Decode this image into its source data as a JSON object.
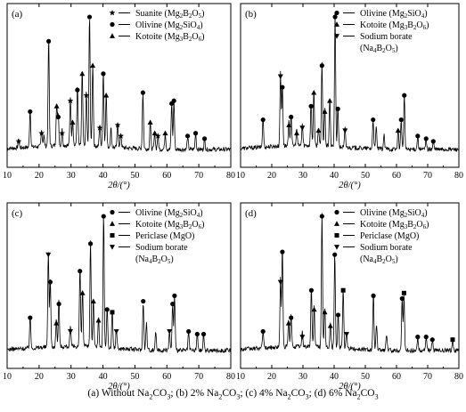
{
  "caption": {
    "a": "(a) Without Na",
    "b": "; (b) 2% Na",
    "c": "; (c) 4% Na",
    "d": "; (d) 6% Na",
    "co3": "CO",
    "sub2": "2",
    "sub3": "3"
  },
  "chart_data": [
    {
      "type": "line",
      "panel_label": "(a)",
      "xlabel": "2θ/(°)",
      "xlim": [
        10,
        80
      ],
      "x_ticks": [
        10,
        20,
        30,
        40,
        50,
        60,
        70,
        80
      ],
      "grid": false,
      "legend_position": "top-right",
      "legend": [
        {
          "marker": "star",
          "name": "Suanite (Mg",
          "sub1": "2",
          "mid": "B",
          "sub2": "2",
          "end": "O",
          "sub3": "5",
          "close": ")"
        },
        {
          "marker": "circle",
          "name": "Olivine (Mg",
          "sub1": "2",
          "mid": "SiO",
          "sub2": "4",
          "end": ")",
          "sub3": "",
          "close": ""
        },
        {
          "marker": "triangle",
          "name": "Kotoite (Mg",
          "sub1": "3",
          "mid": "B",
          "sub2": "2",
          "end": "O",
          "sub3": "6",
          "close": ")"
        }
      ],
      "peaks": [
        {
          "x": 13.6,
          "y": 6,
          "marker": "star"
        },
        {
          "x": 17.2,
          "y": 28,
          "marker": "circle"
        },
        {
          "x": 20.8,
          "y": 12,
          "marker": "star"
        },
        {
          "x": 21.5,
          "y": 8,
          "marker": null
        },
        {
          "x": 23.0,
          "y": 80,
          "marker": "circle"
        },
        {
          "x": 25.5,
          "y": 32,
          "marker": "triangle"
        },
        {
          "x": 26.0,
          "y": 24,
          "marker": "circle"
        },
        {
          "x": 27.2,
          "y": 12,
          "marker": "star"
        },
        {
          "x": 29.8,
          "y": 36,
          "marker": "star"
        },
        {
          "x": 30.5,
          "y": 20,
          "marker": "triangle"
        },
        {
          "x": 32.0,
          "y": 44,
          "marker": "circle"
        },
        {
          "x": 33.5,
          "y": 56,
          "marker": "triangle"
        },
        {
          "x": 34.8,
          "y": 40,
          "marker": "star"
        },
        {
          "x": 35.8,
          "y": 98,
          "marker": "circle"
        },
        {
          "x": 36.8,
          "y": 62,
          "marker": "triangle"
        },
        {
          "x": 39.0,
          "y": 16,
          "marker": "star"
        },
        {
          "x": 40.1,
          "y": 56,
          "marker": "circle"
        },
        {
          "x": 41.0,
          "y": 40,
          "marker": "triangle"
        },
        {
          "x": 42.5,
          "y": 14,
          "marker": null
        },
        {
          "x": 44.6,
          "y": 18,
          "marker": "star"
        },
        {
          "x": 45.6,
          "y": 10,
          "marker": "star"
        },
        {
          "x": 52.5,
          "y": 42,
          "marker": "circle"
        },
        {
          "x": 54.8,
          "y": 20,
          "marker": "triangle"
        },
        {
          "x": 56.2,
          "y": 12,
          "marker": "triangle"
        },
        {
          "x": 57.2,
          "y": 10,
          "marker": "star"
        },
        {
          "x": 59.5,
          "y": 12,
          "marker": "triangle"
        },
        {
          "x": 61.5,
          "y": 34,
          "marker": "circle"
        },
        {
          "x": 62.2,
          "y": 36,
          "marker": "circle"
        },
        {
          "x": 66.5,
          "y": 10,
          "marker": "circle"
        },
        {
          "x": 69.0,
          "y": 12,
          "marker": "circle"
        },
        {
          "x": 71.8,
          "y": 8,
          "marker": "circle"
        }
      ]
    },
    {
      "type": "line",
      "panel_label": "(b)",
      "xlabel": "2θ/(°)",
      "xlim": [
        10,
        80
      ],
      "x_ticks": [
        10,
        20,
        30,
        40,
        50,
        60,
        70,
        80
      ],
      "grid": false,
      "legend_position": "top-right",
      "legend": [
        {
          "marker": "circle",
          "name": "Olivine (Mg",
          "sub1": "2",
          "mid": "SiO",
          "sub2": "4",
          "end": ")",
          "sub3": "",
          "close": ""
        },
        {
          "marker": "triangle",
          "name": "Kotoite (Mg",
          "sub1": "3",
          "mid": "B",
          "sub2": "2",
          "end": "O",
          "sub3": "6",
          "close": ")"
        },
        {
          "marker": "inverted-triangle",
          "name": "Sodium borate",
          "sub1": "",
          "mid": "",
          "sub2": "",
          "end": "",
          "sub3": "",
          "close": ""
        },
        {
          "marker": null,
          "name": "(Na",
          "sub1": "4",
          "mid": "B",
          "sub2": "2",
          "end": "O",
          "sub3": "5",
          "close": ")"
        }
      ],
      "peaks": [
        {
          "x": 17.2,
          "y": 22,
          "marker": "circle"
        },
        {
          "x": 22.8,
          "y": 54,
          "marker": "inverted-triangle"
        },
        {
          "x": 23.4,
          "y": 46,
          "marker": "circle"
        },
        {
          "x": 25.5,
          "y": 18,
          "marker": "triangle"
        },
        {
          "x": 26.2,
          "y": 24,
          "marker": "circle"
        },
        {
          "x": 28.0,
          "y": 12,
          "marker": "triangle"
        },
        {
          "x": 29.8,
          "y": 16,
          "marker": "inverted-triangle"
        },
        {
          "x": 32.6,
          "y": 32,
          "marker": "circle"
        },
        {
          "x": 33.5,
          "y": 42,
          "marker": "triangle"
        },
        {
          "x": 35.0,
          "y": 14,
          "marker": "triangle"
        },
        {
          "x": 36.1,
          "y": 62,
          "marker": "circle"
        },
        {
          "x": 37.0,
          "y": 28,
          "marker": "triangle"
        },
        {
          "x": 38.6,
          "y": 36,
          "marker": "triangle"
        },
        {
          "x": 40.3,
          "y": 98,
          "marker": "circle"
        },
        {
          "x": 41.2,
          "y": 30,
          "marker": "circle"
        },
        {
          "x": 43.5,
          "y": 14,
          "marker": "inverted-triangle"
        },
        {
          "x": 52.5,
          "y": 22,
          "marker": "circle"
        },
        {
          "x": 53.5,
          "y": 16,
          "marker": null
        },
        {
          "x": 56.0,
          "y": 10,
          "marker": null
        },
        {
          "x": 60.5,
          "y": 14,
          "marker": "triangle"
        },
        {
          "x": 61.5,
          "y": 22,
          "marker": "circle"
        },
        {
          "x": 62.5,
          "y": 40,
          "marker": "circle"
        },
        {
          "x": 66.8,
          "y": 10,
          "marker": "circle"
        },
        {
          "x": 69.5,
          "y": 8,
          "marker": "circle"
        },
        {
          "x": 71.8,
          "y": 6,
          "marker": "circle"
        }
      ]
    },
    {
      "type": "line",
      "panel_label": "(c)",
      "xlabel": "2θ/(°)",
      "xlim": [
        10,
        80
      ],
      "x_ticks": [
        10,
        20,
        30,
        40,
        50,
        60,
        70,
        80
      ],
      "grid": false,
      "legend_position": "top-right",
      "legend": [
        {
          "marker": "circle",
          "name": "Olivine (Mg",
          "sub1": "2",
          "mid": "SiO",
          "sub2": "4",
          "end": ")",
          "sub3": "",
          "close": ""
        },
        {
          "marker": "triangle",
          "name": "Kotoite (Mg",
          "sub1": "3",
          "mid": "B",
          "sub2": "2",
          "end": "O",
          "sub3": "6",
          "close": ")"
        },
        {
          "marker": "square",
          "name": "Periclase (MgO)",
          "sub1": "",
          "mid": "",
          "sub2": "",
          "end": "",
          "sub3": "",
          "close": ""
        },
        {
          "marker": "inverted-triangle",
          "name": "Sodium borate",
          "sub1": "",
          "mid": "",
          "sub2": "",
          "end": "",
          "sub3": "",
          "close": ""
        },
        {
          "marker": null,
          "name": "(Na",
          "sub1": "4",
          "mid": "B",
          "sub2": "2",
          "end": "O",
          "sub3": "5",
          "close": ")"
        }
      ],
      "peaks": [
        {
          "x": 17.2,
          "y": 24,
          "marker": "circle"
        },
        {
          "x": 22.9,
          "y": 70,
          "marker": "inverted-triangle"
        },
        {
          "x": 23.5,
          "y": 50,
          "marker": "circle"
        },
        {
          "x": 25.4,
          "y": 20,
          "marker": "triangle"
        },
        {
          "x": 26.2,
          "y": 34,
          "marker": "circle"
        },
        {
          "x": 29.8,
          "y": 14,
          "marker": "inverted-triangle"
        },
        {
          "x": 32.8,
          "y": 58,
          "marker": "circle"
        },
        {
          "x": 33.6,
          "y": 42,
          "marker": "triangle"
        },
        {
          "x": 36.1,
          "y": 78,
          "marker": "circle"
        },
        {
          "x": 37.0,
          "y": 36,
          "marker": "triangle"
        },
        {
          "x": 38.6,
          "y": 22,
          "marker": "triangle"
        },
        {
          "x": 40.2,
          "y": 98,
          "marker": "circle"
        },
        {
          "x": 41.3,
          "y": 30,
          "marker": "circle"
        },
        {
          "x": 42.9,
          "y": 28,
          "marker": "square"
        },
        {
          "x": 44.2,
          "y": 14,
          "marker": "inverted-triangle"
        },
        {
          "x": 52.6,
          "y": 36,
          "marker": "circle"
        },
        {
          "x": 53.6,
          "y": 20,
          "marker": null
        },
        {
          "x": 56.5,
          "y": 14,
          "marker": null
        },
        {
          "x": 60.8,
          "y": 14,
          "marker": "inverted-triangle"
        },
        {
          "x": 61.8,
          "y": 34,
          "marker": "circle"
        },
        {
          "x": 62.4,
          "y": 40,
          "marker": "circle"
        },
        {
          "x": 66.8,
          "y": 14,
          "marker": "circle"
        },
        {
          "x": 69.5,
          "y": 12,
          "marker": "circle"
        },
        {
          "x": 71.5,
          "y": 12,
          "marker": "circle"
        }
      ]
    },
    {
      "type": "line",
      "panel_label": "(d)",
      "xlabel": "2θ/(°)",
      "xlim": [
        10,
        80
      ],
      "x_ticks": [
        10,
        20,
        30,
        40,
        50,
        60,
        70,
        80
      ],
      "grid": false,
      "legend_position": "top-right",
      "legend": [
        {
          "marker": "circle",
          "name": "Olivine (Mg",
          "sub1": "2",
          "mid": "SiO",
          "sub2": "4",
          "end": ")",
          "sub3": "",
          "close": ""
        },
        {
          "marker": "triangle",
          "name": "Kotoite (Mg",
          "sub1": "3",
          "mid": "B",
          "sub2": "2",
          "end": "O",
          "sub3": "6",
          "close": ")"
        },
        {
          "marker": "square",
          "name": "Periclase (MgO)",
          "sub1": "",
          "mid": "",
          "sub2": "",
          "end": "",
          "sub3": "",
          "close": ""
        },
        {
          "marker": "inverted-triangle",
          "name": "Sodium borate",
          "sub1": "",
          "mid": "",
          "sub2": "",
          "end": "",
          "sub3": "",
          "close": ""
        },
        {
          "marker": null,
          "name": "(Na",
          "sub1": "4",
          "mid": "B",
          "sub2": "2",
          "end": "O",
          "sub3": "5",
          "close": ")"
        }
      ],
      "peaks": [
        {
          "x": 17.2,
          "y": 14,
          "marker": "circle"
        },
        {
          "x": 22.8,
          "y": 50,
          "marker": "inverted-triangle"
        },
        {
          "x": 23.4,
          "y": 72,
          "marker": "circle"
        },
        {
          "x": 25.4,
          "y": 20,
          "marker": "triangle"
        },
        {
          "x": 26.2,
          "y": 24,
          "marker": "circle"
        },
        {
          "x": 29.8,
          "y": 10,
          "marker": "inverted-triangle"
        },
        {
          "x": 32.7,
          "y": 44,
          "marker": "circle"
        },
        {
          "x": 33.6,
          "y": 30,
          "marker": "triangle"
        },
        {
          "x": 36.1,
          "y": 98,
          "marker": "circle"
        },
        {
          "x": 37.0,
          "y": 28,
          "marker": "triangle"
        },
        {
          "x": 38.8,
          "y": 18,
          "marker": "triangle"
        },
        {
          "x": 40.2,
          "y": 70,
          "marker": "circle"
        },
        {
          "x": 41.3,
          "y": 26,
          "marker": "circle"
        },
        {
          "x": 42.9,
          "y": 44,
          "marker": "square"
        },
        {
          "x": 44.0,
          "y": 12,
          "marker": "inverted-triangle"
        },
        {
          "x": 52.6,
          "y": 40,
          "marker": "circle"
        },
        {
          "x": 53.6,
          "y": 18,
          "marker": null
        },
        {
          "x": 56.8,
          "y": 12,
          "marker": null
        },
        {
          "x": 61.8,
          "y": 38,
          "marker": "circle"
        },
        {
          "x": 62.4,
          "y": 42,
          "marker": "square"
        },
        {
          "x": 66.8,
          "y": 10,
          "marker": "circle"
        },
        {
          "x": 69.5,
          "y": 10,
          "marker": "circle"
        },
        {
          "x": 71.5,
          "y": 8,
          "marker": "circle"
        },
        {
          "x": 78.0,
          "y": 8,
          "marker": "square"
        }
      ]
    }
  ]
}
